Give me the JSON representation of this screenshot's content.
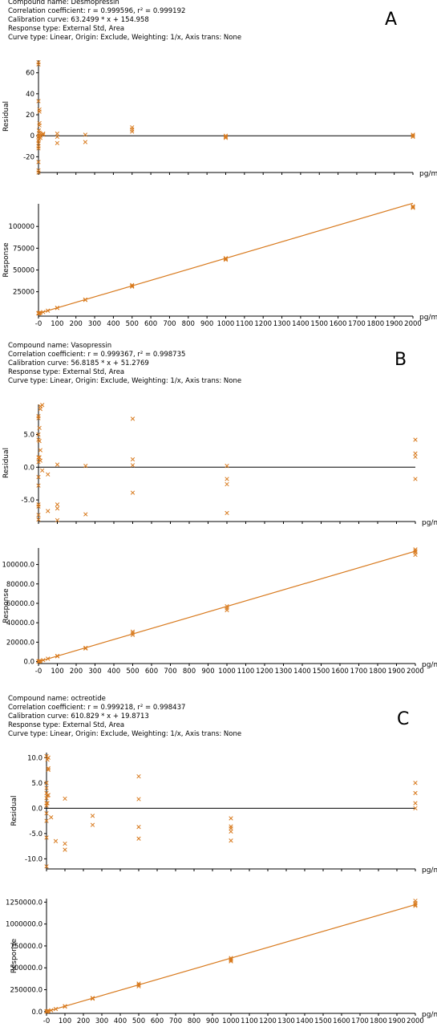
{
  "colors": {
    "data": "#d87a1e",
    "axis": "#000000",
    "zero_line": "#000000"
  },
  "panels": [
    {
      "label": "A",
      "info": {
        "compound": "Compound name: Desmopressin",
        "correlation": "Correlation coefficient: r = 0.999596, r² = 0.999192",
        "calibration": "Calibration curve: 63.2499 * x + 154.958",
        "response": "Response type: External Std, Area",
        "curve": "Curve type: Linear, Origin: Exclude, Weighting: 1/x, Axis trans: None"
      }
    },
    {
      "label": "B",
      "info": {
        "compound": "Compound name: Vasopressin",
        "correlation": "Correlation coefficient: r = 0.999367, r² = 0.998735",
        "calibration": "Calibration curve: 56.8185 * x + 51.2769",
        "response": "Response type: External Std, Area",
        "curve": "Curve type: Linear, Origin: Exclude, Weighting: 1/x, Axis trans: None"
      }
    },
    {
      "label": "C",
      "info": {
        "compound": "Compound name: octreotide",
        "correlation": "Correlation coefficient: r = 0.999218, r² = 0.998437",
        "calibration": "Calibration curve: 610.829 * x + 19.8713",
        "response": "Response type: External Std, Area",
        "curve": "Curve type: Linear, Origin: Exclude, Weighting: 1/x, Axis trans: None"
      }
    }
  ],
  "chart_data": [
    {
      "id": "A-residual",
      "type": "scatter",
      "xlabel": "pg/mL",
      "ylabel": "Residual",
      "xlim": [
        0,
        2000
      ],
      "ylim": [
        -35,
        72
      ],
      "yticks": [
        -20,
        0,
        20,
        40,
        60
      ],
      "zero_line": true,
      "x_tick_labels": false,
      "points": [
        [
          0,
          70
        ],
        [
          0,
          68
        ],
        [
          0,
          33
        ],
        [
          0,
          -1
        ],
        [
          0,
          -5
        ],
        [
          0,
          -7
        ],
        [
          0,
          -10
        ],
        [
          0,
          -12
        ],
        [
          0,
          -25
        ],
        [
          0,
          -33
        ],
        [
          0,
          -35
        ],
        [
          2,
          5
        ],
        [
          2,
          0
        ],
        [
          2,
          -3
        ],
        [
          5,
          25
        ],
        [
          5,
          23
        ],
        [
          5,
          12
        ],
        [
          5,
          10
        ],
        [
          5,
          3
        ],
        [
          10,
          2
        ],
        [
          10,
          0
        ],
        [
          10,
          -2
        ],
        [
          25,
          2
        ],
        [
          25,
          1
        ],
        [
          100,
          2
        ],
        [
          100,
          -1
        ],
        [
          100,
          -7
        ],
        [
          250,
          1
        ],
        [
          250,
          -6
        ],
        [
          500,
          8
        ],
        [
          500,
          6
        ],
        [
          500,
          4
        ],
        [
          1000,
          0
        ],
        [
          1000,
          -1
        ],
        [
          1000,
          -2
        ],
        [
          2000,
          1
        ],
        [
          2000,
          0
        ],
        [
          2000,
          -1
        ]
      ]
    },
    {
      "id": "A-response",
      "type": "scatter",
      "xlabel": "pg/mL",
      "ylabel": "Response",
      "xlim": [
        0,
        2000
      ],
      "ylim": [
        -3000,
        126000
      ],
      "yticks": [
        25000,
        50000,
        75000,
        100000
      ],
      "x_ticks_tail": [
        100,
        2000,
        100
      ],
      "fit": {
        "slope": 63.2499,
        "intercept": 154.958
      },
      "points": [
        [
          0,
          0
        ],
        [
          0,
          300
        ],
        [
          0,
          600
        ],
        [
          2,
          300
        ],
        [
          5,
          500
        ],
        [
          10,
          800
        ],
        [
          25,
          1600
        ],
        [
          50,
          3300
        ],
        [
          100,
          6500
        ],
        [
          100,
          6300
        ],
        [
          250,
          16000
        ],
        [
          250,
          15600
        ],
        [
          500,
          32700
        ],
        [
          500,
          31800
        ],
        [
          500,
          30900
        ],
        [
          1000,
          63500
        ],
        [
          1000,
          62800
        ],
        [
          1000,
          61700
        ],
        [
          2000,
          123200
        ],
        [
          2000,
          122100
        ],
        [
          2000,
          121400
        ]
      ]
    },
    {
      "id": "B-residual",
      "type": "scatter",
      "xlabel": "pg/mL",
      "ylabel": "Residual",
      "xlim": [
        0,
        2000
      ],
      "ylim": [
        -8.3,
        9.6
      ],
      "yticks": [
        -5.0,
        0.0,
        5.0
      ],
      "zero_line": true,
      "x_tick_labels": false,
      "points": [
        [
          0,
          7.8
        ],
        [
          0,
          7.5
        ],
        [
          0,
          5
        ],
        [
          0,
          4.2
        ],
        [
          0,
          1.5
        ],
        [
          0,
          0.8
        ],
        [
          0,
          -1.5
        ],
        [
          0,
          -2.8
        ],
        [
          0,
          -5.7
        ],
        [
          0,
          -6
        ],
        [
          0,
          -7.3
        ],
        [
          0,
          -8
        ],
        [
          5,
          6
        ],
        [
          5,
          4
        ],
        [
          5,
          1.5
        ],
        [
          10,
          9.3
        ],
        [
          10,
          8.9
        ],
        [
          10,
          2.6
        ],
        [
          10,
          1
        ],
        [
          20,
          9.5
        ],
        [
          20,
          -0.5
        ],
        [
          50,
          -1.1
        ],
        [
          50,
          -6.7
        ],
        [
          100,
          -5.7
        ],
        [
          100,
          -6.3
        ],
        [
          100,
          -8.1
        ],
        [
          100,
          0.4
        ],
        [
          250,
          0.2
        ],
        [
          250,
          -7.2
        ],
        [
          500,
          7.4
        ],
        [
          500,
          1.2
        ],
        [
          500,
          0.3
        ],
        [
          500,
          -3.9
        ],
        [
          1000,
          0.2
        ],
        [
          1000,
          -1.8
        ],
        [
          1000,
          -2.6
        ],
        [
          1000,
          -7
        ],
        [
          2000,
          4.2
        ],
        [
          2000,
          2.1
        ],
        [
          2000,
          1.6
        ],
        [
          2000,
          -1.8
        ]
      ]
    },
    {
      "id": "B-response",
      "type": "scatter",
      "xlabel": "pg/mL",
      "ylabel": "Response",
      "xlim": [
        0,
        2000
      ],
      "ylim": [
        -2000,
        117000
      ],
      "yticks": [
        0,
        20000,
        40000,
        60000,
        80000,
        100000
      ],
      "x_ticks_tail": [
        100,
        2000,
        100
      ],
      "fit": {
        "slope": 56.8185,
        "intercept": 51.2769
      },
      "points": [
        [
          0,
          0
        ],
        [
          0,
          400
        ],
        [
          2,
          250
        ],
        [
          5,
          350
        ],
        [
          10,
          600
        ],
        [
          25,
          1500
        ],
        [
          50,
          3000
        ],
        [
          100,
          5800
        ],
        [
          100,
          5500
        ],
        [
          250,
          14200
        ],
        [
          250,
          13500
        ],
        [
          500,
          30800
        ],
        [
          500,
          29200
        ],
        [
          500,
          27500
        ],
        [
          1000,
          57000
        ],
        [
          1000,
          55000
        ],
        [
          1000,
          53000
        ],
        [
          2000,
          115500
        ],
        [
          2000,
          114000
        ],
        [
          2000,
          112500
        ],
        [
          2000,
          110000
        ]
      ]
    },
    {
      "id": "C-residual",
      "type": "scatter",
      "xlabel": "pg/mL",
      "ylabel": "Residual",
      "xlim": [
        0,
        2000
      ],
      "ylim": [
        -12,
        11
      ],
      "yticks": [
        -10.0,
        -5.0,
        0.0,
        5.0,
        10.0
      ],
      "zero_line": true,
      "x_tick_labels": false,
      "points": [
        [
          0,
          10.3
        ],
        [
          0,
          5
        ],
        [
          0,
          4
        ],
        [
          0,
          3
        ],
        [
          0,
          2
        ],
        [
          0,
          1
        ],
        [
          0,
          0.5
        ],
        [
          0,
          -1
        ],
        [
          0,
          -2.5
        ],
        [
          0,
          -5.8
        ],
        [
          0,
          -11.5
        ],
        [
          5,
          9.6
        ],
        [
          5,
          2.5
        ],
        [
          5,
          1
        ],
        [
          10,
          10
        ],
        [
          10,
          7.9
        ],
        [
          10,
          7.6
        ],
        [
          10,
          2.6
        ],
        [
          25,
          -1.8
        ],
        [
          50,
          -6.5
        ],
        [
          100,
          1.9
        ],
        [
          100,
          -7
        ],
        [
          100,
          -8.2
        ],
        [
          250,
          -1.5
        ],
        [
          250,
          -3.3
        ],
        [
          500,
          6.3
        ],
        [
          500,
          1.8
        ],
        [
          500,
          -3.7
        ],
        [
          500,
          -6
        ],
        [
          1000,
          -2
        ],
        [
          1000,
          -3.6
        ],
        [
          1000,
          -4
        ],
        [
          1000,
          -4.6
        ],
        [
          1000,
          -6.4
        ],
        [
          2000,
          5
        ],
        [
          2000,
          3
        ],
        [
          2000,
          1
        ],
        [
          2000,
          0
        ]
      ]
    },
    {
      "id": "C-response",
      "type": "scatter",
      "xlabel": "pg/mL",
      "ylabel": "Response",
      "xlim": [
        0,
        2000
      ],
      "ylim": [
        -20000,
        1290000
      ],
      "yticks": [
        0,
        250000,
        500000,
        750000,
        1000000,
        1250000
      ],
      "x_ticks_tail": [
        100,
        2000,
        100
      ],
      "fit": {
        "slope": 610.829,
        "intercept": 19.8713
      },
      "points": [
        [
          0,
          0
        ],
        [
          0,
          5000
        ],
        [
          2,
          2000
        ],
        [
          5,
          3000
        ],
        [
          10,
          7000
        ],
        [
          25,
          15000
        ],
        [
          50,
          30000
        ],
        [
          100,
          62000
        ],
        [
          100,
          57000
        ],
        [
          250,
          155000
        ],
        [
          250,
          148000
        ],
        [
          500,
          320000
        ],
        [
          500,
          305000
        ],
        [
          500,
          290000
        ],
        [
          1000,
          612000
        ],
        [
          1000,
          598000
        ],
        [
          1000,
          585000
        ],
        [
          1000,
          574000
        ],
        [
          2000,
          1265000
        ],
        [
          2000,
          1240000
        ],
        [
          2000,
          1222000
        ],
        [
          2000,
          1208000
        ]
      ]
    }
  ]
}
